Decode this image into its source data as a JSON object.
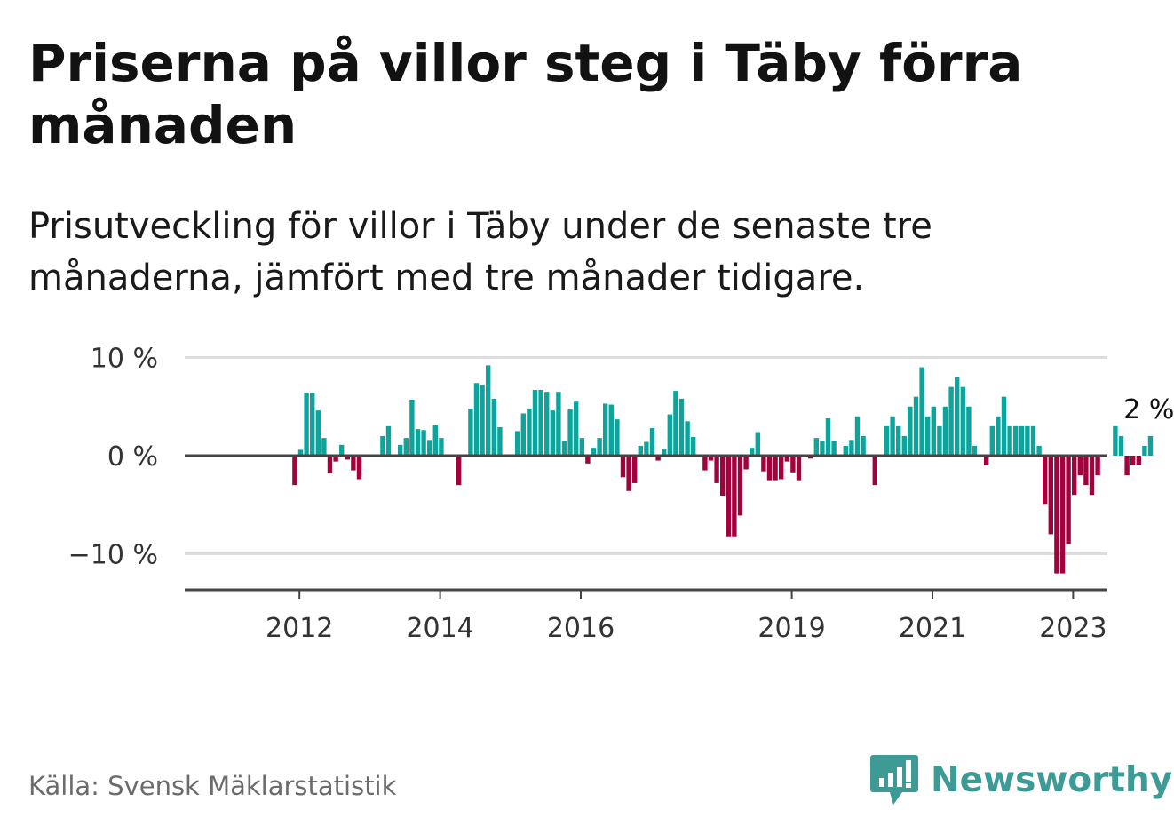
{
  "header": {
    "title": "Priserna på villor steg i Täby förra månaden",
    "subtitle": "Prisutveckling för villor i Täby under de senaste tre månaderna, jämfört med tre månader tidigare."
  },
  "footer": {
    "source": "Källa: Svensk Mäklarstatistik",
    "brand": "Newsworthy"
  },
  "colors": {
    "positive": "#0fa49b",
    "negative": "#a3003e",
    "brand": "#3d9a94",
    "grid": "#dddddd",
    "axis": "#444444"
  },
  "chart_data": {
    "type": "bar",
    "title": "Priserna på villor steg i Täby förra månaden",
    "subtitle": "Prisutveckling för villor i Täby under de senaste tre månaderna, jämfört med tre månader tidigare.",
    "xlabel": "",
    "ylabel": "",
    "unit": "%",
    "ylim": [
      -13.5,
      10
    ],
    "y_ticks": [
      {
        "value": 10,
        "label": "10 %"
      },
      {
        "value": 0,
        "label": "0 %"
      },
      {
        "value": -10,
        "label": "−10 %"
      }
    ],
    "x_ticks": [
      {
        "year": 2012,
        "label": "2012"
      },
      {
        "year": 2014,
        "label": "2014"
      },
      {
        "year": 2016,
        "label": "2016"
      },
      {
        "year": 2019,
        "label": "2019"
      },
      {
        "year": 2021,
        "label": "2021"
      },
      {
        "year": 2023,
        "label": "2023"
      }
    ],
    "start": {
      "year": 2011,
      "month": 1
    },
    "grid": true,
    "annotation": {
      "label": "2 %",
      "target": "last"
    },
    "values": [
      null,
      null,
      null,
      null,
      null,
      null,
      null,
      null,
      null,
      null,
      null,
      null,
      -3,
      0.6,
      6.4,
      6.4,
      4.6,
      1.8,
      -1.8,
      -0.6,
      1.1,
      -0.4,
      -1.5,
      -2.4,
      null,
      null,
      null,
      2,
      3,
      null,
      1.1,
      1.8,
      5.7,
      2.7,
      2.6,
      1.6,
      3.1,
      1.8,
      null,
      null,
      -3,
      null,
      4.8,
      7.4,
      7.2,
      9.2,
      5.8,
      2.9,
      null,
      null,
      2.5,
      4.3,
      4.8,
      6.7,
      6.7,
      6.5,
      4.6,
      6.5,
      1.5,
      4.7,
      5.5,
      1.8,
      -0.8,
      0.8,
      1.8,
      5.3,
      5.2,
      3.7,
      -2.2,
      -3.6,
      -2.8,
      1,
      1.4,
      2.8,
      -0.5,
      0.7,
      4.2,
      6.6,
      5.8,
      3.5,
      1.9,
      null,
      -1.5,
      -0.5,
      -2.8,
      -4.1,
      -8.3,
      -8.3,
      -6.1,
      -1.4,
      0.8,
      2.4,
      -1.6,
      -2.5,
      -2.5,
      -2.4,
      -0.6,
      -1.7,
      -2.5,
      null,
      -0.3,
      1.8,
      1.5,
      3.8,
      1.5,
      null,
      1,
      1.6,
      4,
      2,
      null,
      -3,
      null,
      3,
      4,
      3,
      2,
      5,
      6,
      9,
      4,
      5,
      3,
      5,
      7,
      8,
      7,
      5,
      1,
      null,
      -1,
      3,
      4,
      6,
      3,
      3,
      3,
      3,
      3,
      1,
      -5,
      -8,
      -12,
      -12,
      -9,
      -4,
      -2,
      -3,
      -4,
      -2,
      null,
      null,
      3,
      2,
      -2,
      -1,
      -1,
      1,
      2
    ]
  }
}
